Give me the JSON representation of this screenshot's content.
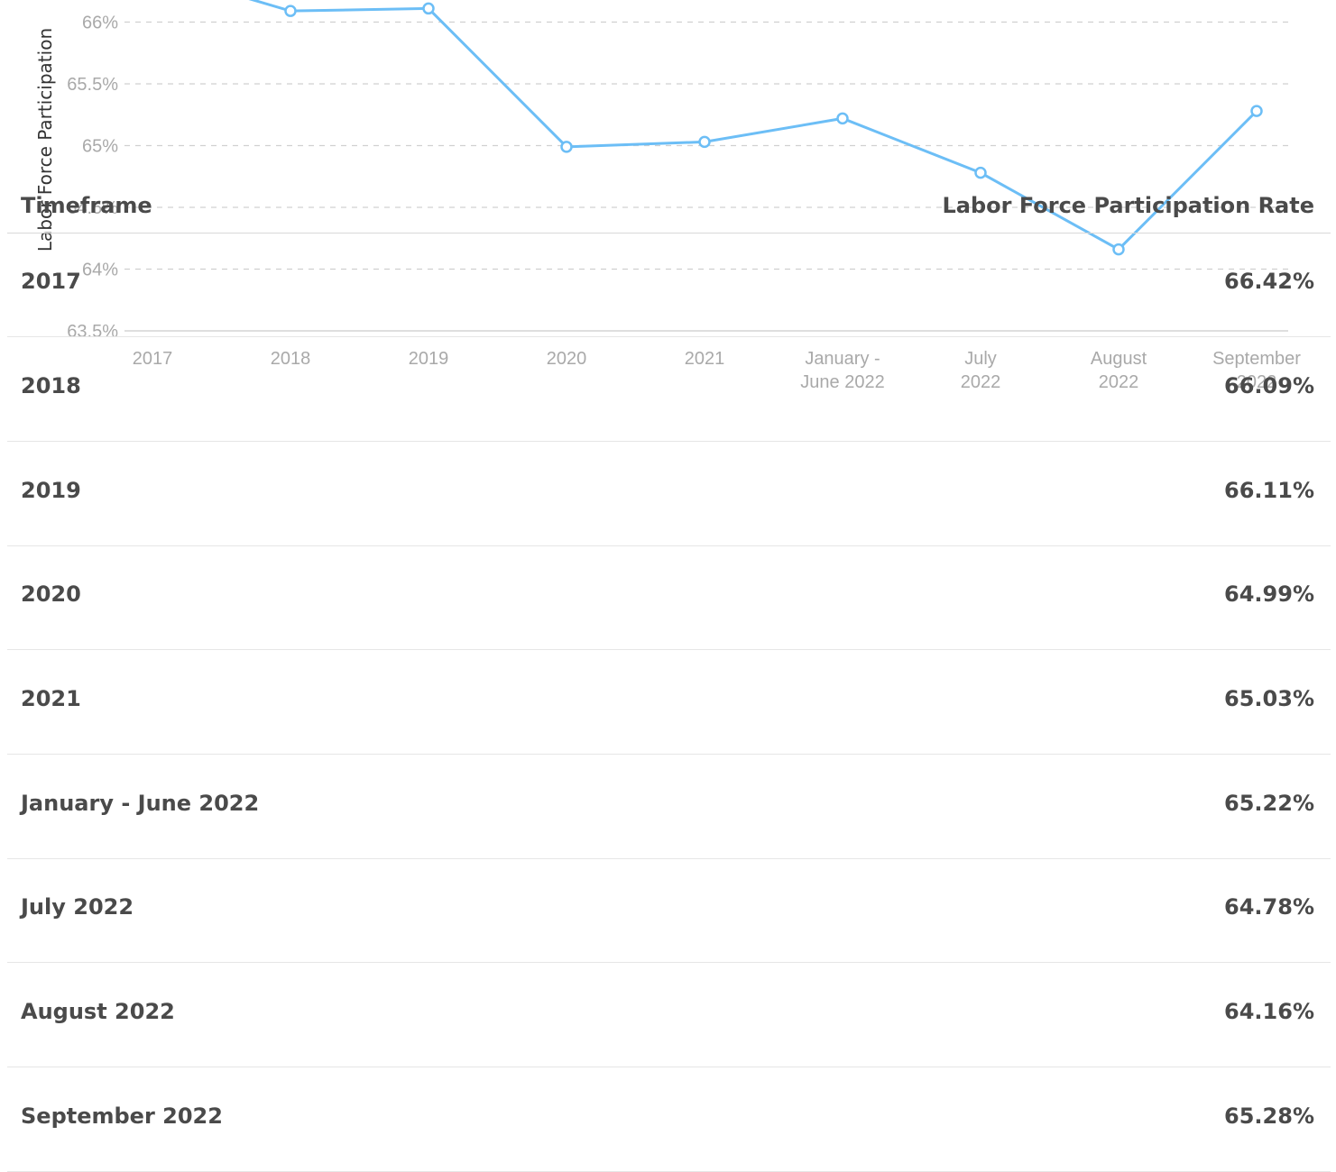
{
  "chart_data": {
    "type": "line",
    "ylabel": "Labor Force Participation",
    "categories": [
      "2017",
      "2018",
      "2019",
      "2020",
      "2021",
      "January - June 2022",
      "July 2022",
      "August 2022",
      "September 2022"
    ],
    "category_tick_labels": [
      [
        "2017"
      ],
      [
        "2018"
      ],
      [
        "2019"
      ],
      [
        "2020"
      ],
      [
        "2021"
      ],
      [
        "January -",
        "June 2022"
      ],
      [
        "July",
        "2022"
      ],
      [
        "August",
        "2022"
      ],
      [
        "September",
        "2022"
      ]
    ],
    "values": [
      66.42,
      66.09,
      66.11,
      64.99,
      65.03,
      65.22,
      64.78,
      64.16,
      65.28
    ],
    "y_ticks": [
      63.5,
      64,
      64.5,
      65,
      65.5,
      66
    ],
    "y_tick_labels": [
      "63.5%",
      "64%",
      "64.5%",
      "65%",
      "65.5%",
      "66%"
    ],
    "ylim": [
      63.5,
      66.6
    ],
    "grid": true,
    "line_color": "#6cbef6"
  },
  "table": {
    "headers": {
      "timeframe": "Timeframe",
      "rate": "Labor Force Participation Rate"
    },
    "rows": [
      {
        "timeframe": "2017",
        "rate": "66.42%"
      },
      {
        "timeframe": "2018",
        "rate": "66.09%"
      },
      {
        "timeframe": "2019",
        "rate": "66.11%"
      },
      {
        "timeframe": "2020",
        "rate": "64.99%"
      },
      {
        "timeframe": "2021",
        "rate": "65.03%"
      },
      {
        "timeframe": "January - June 2022",
        "rate": "65.22%"
      },
      {
        "timeframe": "July 2022",
        "rate": "64.78%"
      },
      {
        "timeframe": "August 2022",
        "rate": "64.16%"
      },
      {
        "timeframe": "September 2022",
        "rate": "65.28%"
      }
    ]
  }
}
